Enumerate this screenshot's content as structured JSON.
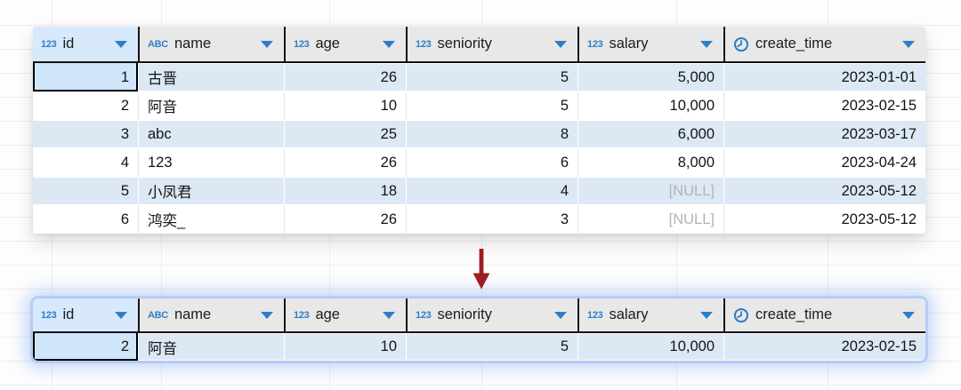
{
  "colors": {
    "accent_blue": "#2e7ec6",
    "header_bg": "#e8e8e8",
    "header_id_bg": "#d7e9fb",
    "row_alt_bg": "#dde8f5",
    "focus_cell_bg": "#cfe6fa",
    "null_text": "#b3b3b3",
    "arrow_red": "#9e1d22",
    "grid_line": "#ececec"
  },
  "null_placeholder": "[NULL]",
  "columns": [
    {
      "id": "id",
      "label": "id",
      "type": "numeric",
      "type_badge": "123",
      "align": "right"
    },
    {
      "id": "name",
      "label": "name",
      "type": "text",
      "type_badge": "ABC",
      "align": "left"
    },
    {
      "id": "age",
      "label": "age",
      "type": "numeric",
      "type_badge": "123",
      "align": "right"
    },
    {
      "id": "seniority",
      "label": "seniority",
      "type": "numeric",
      "type_badge": "123",
      "align": "right"
    },
    {
      "id": "salary",
      "label": "salary",
      "type": "numeric",
      "type_badge": "123",
      "align": "right"
    },
    {
      "id": "create_time",
      "label": "create_time",
      "type": "datetime",
      "type_badge": "clock",
      "align": "right"
    }
  ],
  "source_table": {
    "rows": [
      [
        "1",
        "古晋",
        "26",
        "5",
        "5,000",
        "2023-01-01"
      ],
      [
        "2",
        "阿音",
        "10",
        "5",
        "10,000",
        "2023-02-15"
      ],
      [
        "3",
        "abc",
        "25",
        "8",
        "6,000",
        "2023-03-17"
      ],
      [
        "4",
        "123",
        "26",
        "6",
        "8,000",
        "2023-04-24"
      ],
      [
        "5",
        "小凤君",
        "18",
        "4",
        "[NULL]",
        "2023-05-12"
      ],
      [
        "6",
        "鸿奕_",
        "26",
        "3",
        "[NULL]",
        "2023-05-12"
      ]
    ],
    "focused_cell": {
      "row": 0,
      "col": 0
    }
  },
  "result_table": {
    "rows": [
      [
        "2",
        "阿音",
        "10",
        "5",
        "10,000",
        "2023-02-15"
      ]
    ],
    "focused_cell": {
      "row": 0,
      "col": 0
    }
  },
  "arrow": {
    "icon": "down-arrow",
    "color": "#9e1d22"
  }
}
